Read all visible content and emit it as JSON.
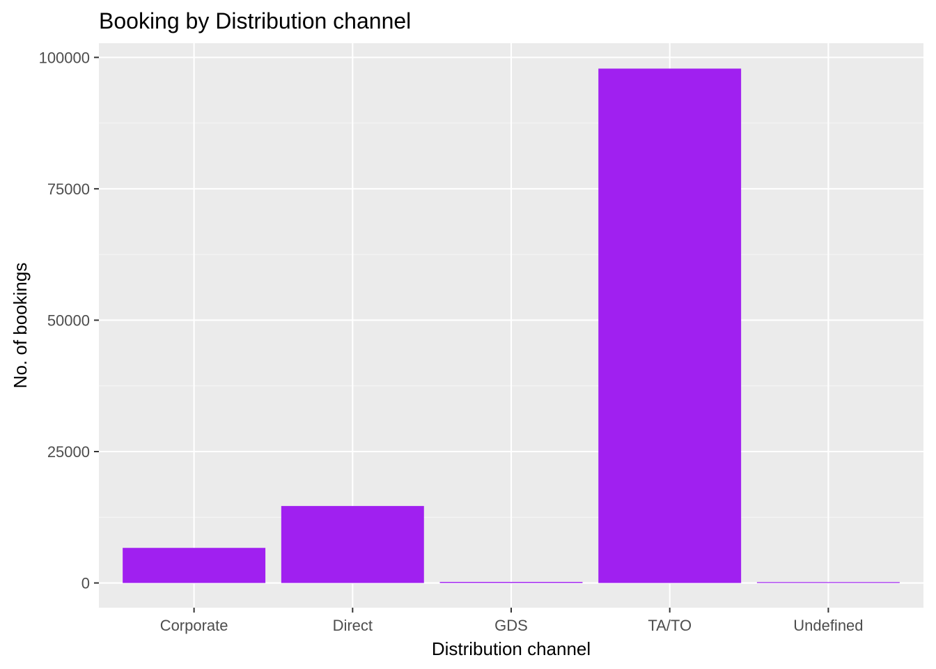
{
  "chart_data": {
    "type": "bar",
    "title": "Booking by Distribution channel",
    "xlabel": "Distribution channel",
    "ylabel": "No. of bookings",
    "categories": [
      "Corporate",
      "Direct",
      "GDS",
      "TA/TO",
      "Undefined"
    ],
    "values": [
      6677,
      14645,
      193,
      97870,
      5
    ],
    "ylim": [
      -4700,
      102700
    ],
    "yticks": [
      0,
      25000,
      50000,
      75000,
      100000
    ],
    "ytick_labels": [
      "0",
      "25000",
      "50000",
      "75000",
      "100000"
    ],
    "grid": true,
    "legend": "none",
    "colors": {
      "bar": "#A020F0",
      "panel": "#EBEBEB",
      "grid_major": "#FFFFFF",
      "grid_minor": "#F5F5F5",
      "tick": "#333333",
      "tick_text": "#4D4D4D"
    }
  }
}
